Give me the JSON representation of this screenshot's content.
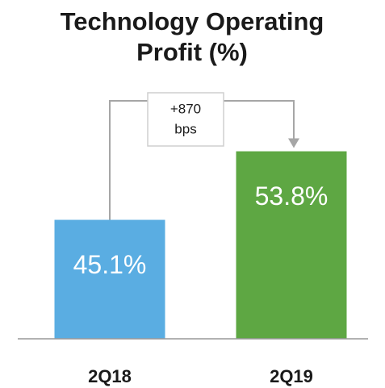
{
  "chart_data": {
    "type": "bar",
    "title": "Technology Operating Profit (%)",
    "categories": [
      "2Q18",
      "2Q19"
    ],
    "values": [
      45.1,
      53.8
    ],
    "value_labels": [
      "45.1%",
      "53.8%"
    ],
    "colors": [
      "#5aade2",
      "#5ea743"
    ],
    "annotation": [
      "+870",
      "bps"
    ],
    "ylim": [
      30,
      60
    ]
  }
}
